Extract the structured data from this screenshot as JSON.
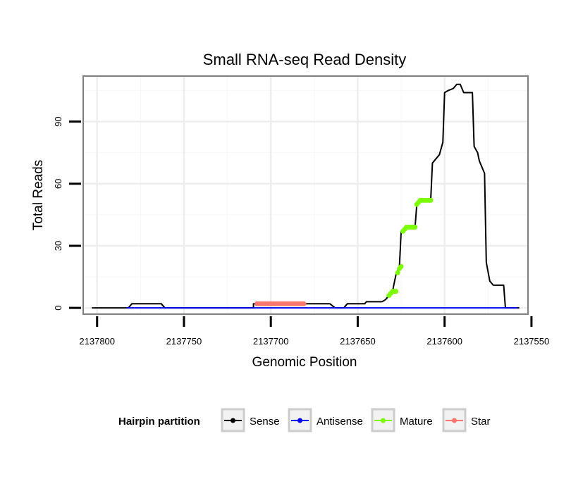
{
  "chart_data": {
    "type": "line",
    "title": "Small RNA-seq Read Density",
    "xlabel": "Genomic Position",
    "ylabel": "Total Reads",
    "x_reversed": true,
    "xlim": [
      2137808,
      2137552
    ],
    "ylim": [
      -3,
      112
    ],
    "x_ticks": [
      2137800,
      2137750,
      2137700,
      2137650,
      2137600,
      2137550
    ],
    "x_tick_labels": [
      "2137800",
      "2137750",
      "2137700",
      "2137650",
      "2137600",
      "2137550"
    ],
    "y_ticks": [
      0,
      30,
      60,
      90
    ],
    "y_tick_labels": [
      "0",
      "30",
      "60",
      "90"
    ],
    "grid": true,
    "legend": {
      "title": "Hairpin partition",
      "position": "bottom",
      "entries": [
        {
          "name": "Sense",
          "color": "#000000"
        },
        {
          "name": "Antisense",
          "color": "#0000ff"
        },
        {
          "name": "Mature",
          "color": "#7cfc00"
        },
        {
          "name": "Star",
          "color": "#f8766d"
        }
      ]
    },
    "series": [
      {
        "name": "Sense",
        "color": "#000000",
        "points": [
          [
            2137803,
            0
          ],
          [
            2137782,
            0
          ],
          [
            2137780,
            2
          ],
          [
            2137763,
            2
          ],
          [
            2137761,
            0
          ],
          [
            2137710,
            0
          ],
          [
            2137710,
            2
          ],
          [
            2137666,
            2
          ],
          [
            2137663,
            0
          ],
          [
            2137658,
            0
          ],
          [
            2137656,
            2
          ],
          [
            2137646,
            2
          ],
          [
            2137645,
            3
          ],
          [
            2137636,
            3
          ],
          [
            2137634,
            4
          ],
          [
            2137632,
            6
          ],
          [
            2137630,
            8
          ],
          [
            2137628,
            16
          ],
          [
            2137626,
            20
          ],
          [
            2137625,
            37
          ],
          [
            2137623,
            38
          ],
          [
            2137621,
            39
          ],
          [
            2137617,
            39
          ],
          [
            2137616,
            50
          ],
          [
            2137614,
            51
          ],
          [
            2137612,
            52
          ],
          [
            2137608,
            52
          ],
          [
            2137607,
            70
          ],
          [
            2137605,
            72
          ],
          [
            2137603,
            74
          ],
          [
            2137601,
            80
          ],
          [
            2137600,
            104
          ],
          [
            2137598,
            105
          ],
          [
            2137595,
            106
          ],
          [
            2137593,
            108
          ],
          [
            2137591,
            108
          ],
          [
            2137589,
            104
          ],
          [
            2137584,
            104
          ],
          [
            2137583,
            78
          ],
          [
            2137581,
            75
          ],
          [
            2137580,
            71
          ],
          [
            2137577,
            65
          ],
          [
            2137576,
            22
          ],
          [
            2137574,
            13
          ],
          [
            2137572,
            11
          ],
          [
            2137566,
            11
          ],
          [
            2137565,
            0
          ],
          [
            2137557,
            0
          ]
        ]
      },
      {
        "name": "Antisense",
        "color": "#0000ff",
        "points": [
          [
            2137783,
            0
          ],
          [
            2137558,
            0
          ]
        ]
      },
      {
        "name": "Mature",
        "color": "#7cfc00",
        "segments": [
          {
            "x": [
              2137632,
              2137631,
              2137630,
              2137629,
              2137628
            ],
            "y": [
              6,
              7,
              8,
              8,
              8
            ]
          },
          {
            "x": [
              2137627,
              2137626,
              2137625
            ],
            "y": [
              17,
              19,
              20
            ]
          },
          {
            "x": [
              2137624,
              2137623,
              2137622,
              2137621,
              2137620,
              2137619,
              2137618,
              2137617
            ],
            "y": [
              37,
              38,
              39,
              39,
              39,
              39,
              39,
              39
            ]
          },
          {
            "x": [
              2137616,
              2137615,
              2137614,
              2137613,
              2137612,
              2137611,
              2137610,
              2137609,
              2137608
            ],
            "y": [
              50,
              51,
              52,
              52,
              52,
              52,
              52,
              52,
              52
            ]
          }
        ]
      },
      {
        "name": "Star",
        "color": "#f8766d",
        "segments": [
          {
            "x": [
              2137708,
              2137707,
              2137706,
              2137705,
              2137704,
              2137703,
              2137702,
              2137701,
              2137700,
              2137699,
              2137698,
              2137697,
              2137696,
              2137695,
              2137694,
              2137693,
              2137692,
              2137691,
              2137690,
              2137689,
              2137688,
              2137687,
              2137686,
              2137685,
              2137684,
              2137683,
              2137682,
              2137681
            ],
            "y": [
              2,
              2,
              2,
              2,
              2,
              2,
              2,
              2,
              2,
              2,
              2,
              2,
              2,
              2,
              2,
              2,
              2,
              2,
              2,
              2,
              2,
              2,
              2,
              2,
              2,
              2,
              2,
              2
            ]
          }
        ]
      }
    ]
  }
}
